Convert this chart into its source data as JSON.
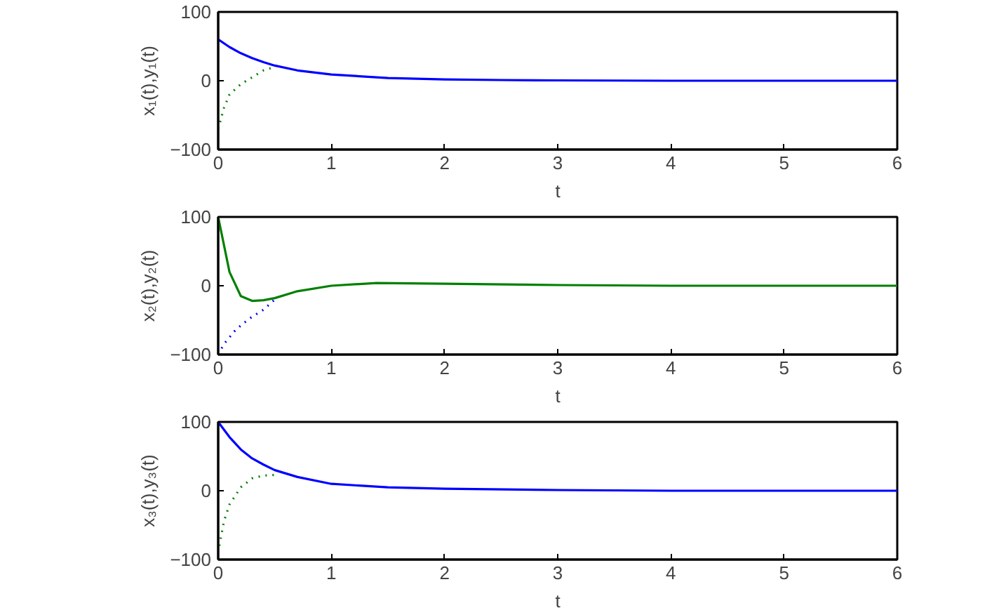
{
  "chart_data": [
    {
      "type": "line",
      "xlabel": "t",
      "ylabel": "x₁(t),y₁(t)",
      "xlim": [
        0,
        6
      ],
      "ylim": [
        -100,
        100
      ],
      "xticks": [
        0,
        1,
        2,
        3,
        4,
        5,
        6
      ],
      "yticks": [
        -100,
        0,
        100
      ],
      "series": [
        {
          "color": "#0000ff",
          "line_style": "solid",
          "x": [
            0,
            0.1,
            0.2,
            0.3,
            0.4,
            0.5,
            0.7,
            1,
            1.5,
            2,
            2.5,
            3,
            4,
            5,
            6
          ],
          "values": [
            60,
            49,
            40,
            33,
            27,
            22,
            15,
            9,
            4,
            2,
            1,
            0.5,
            0,
            0,
            0
          ]
        },
        {
          "color": "#008000",
          "line_style": "dotted",
          "x": [
            0,
            0.05,
            0.1,
            0.2,
            0.3,
            0.4,
            0.5
          ],
          "values": [
            -70,
            -40,
            -20,
            -5,
            5,
            15,
            20
          ]
        }
      ]
    },
    {
      "type": "line",
      "xlabel": "t",
      "ylabel": "x₂(t),y₂(t)",
      "xlim": [
        0,
        6
      ],
      "ylim": [
        -100,
        100
      ],
      "xticks": [
        0,
        1,
        2,
        3,
        4,
        5,
        6
      ],
      "yticks": [
        -100,
        0,
        100
      ],
      "series": [
        {
          "color": "#008000",
          "line_style": "solid",
          "x": [
            0,
            0.1,
            0.2,
            0.3,
            0.4,
            0.5,
            0.7,
            1,
            1.4,
            2,
            3,
            4,
            5,
            6
          ],
          "values": [
            100,
            20,
            -15,
            -22,
            -21,
            -18,
            -8,
            0,
            4,
            3,
            1,
            0,
            0,
            0
          ]
        },
        {
          "color": "#0000ff",
          "line_style": "dotted",
          "x": [
            0,
            0.05,
            0.15,
            0.22,
            0.3,
            0.4,
            0.5
          ],
          "values": [
            -100,
            -85,
            -65,
            -55,
            -45,
            -35,
            -20
          ]
        }
      ]
    },
    {
      "type": "line",
      "xlabel": "t",
      "ylabel": "x₃(t),y₃(t)",
      "xlim": [
        0,
        6
      ],
      "ylim": [
        -100,
        100
      ],
      "xticks": [
        0,
        1,
        2,
        3,
        4,
        5,
        6
      ],
      "yticks": [
        -100,
        0,
        100
      ],
      "series": [
        {
          "color": "#0000ff",
          "line_style": "solid",
          "x": [
            0,
            0.1,
            0.2,
            0.3,
            0.4,
            0.5,
            0.7,
            1,
            1.5,
            2,
            3,
            4,
            5,
            6
          ],
          "values": [
            100,
            78,
            60,
            47,
            38,
            30,
            20,
            10,
            5,
            3,
            1,
            0,
            0,
            0
          ]
        },
        {
          "color": "#008000",
          "line_style": "dotted",
          "x": [
            0.01,
            0.05,
            0.1,
            0.2,
            0.3,
            0.4,
            0.5
          ],
          "values": [
            -80,
            -45,
            -20,
            5,
            18,
            22,
            23
          ]
        }
      ]
    }
  ]
}
